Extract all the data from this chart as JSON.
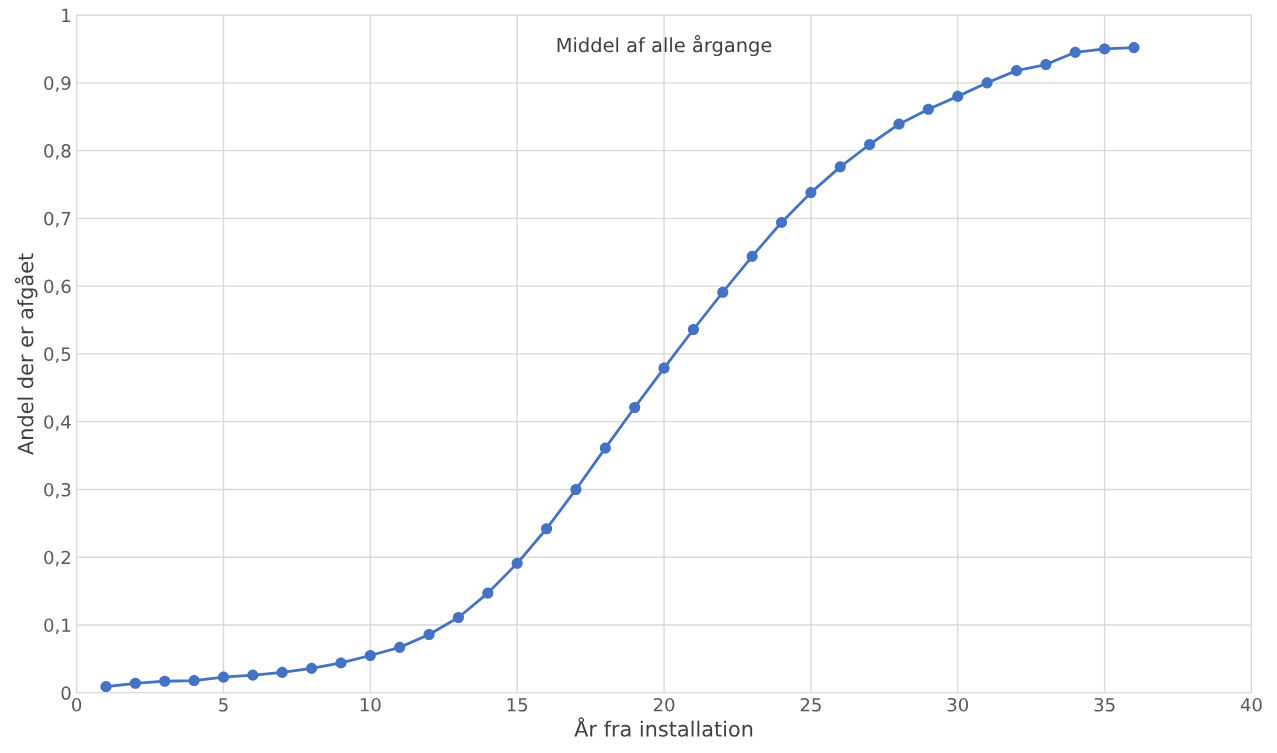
{
  "chart_data": {
    "type": "line",
    "title": "Middel af alle årgange",
    "xlabel": "År fra installation",
    "ylabel": "Andel der er afgået",
    "x": [
      1,
      2,
      3,
      4,
      5,
      6,
      7,
      8,
      9,
      10,
      11,
      12,
      13,
      14,
      15,
      16,
      17,
      18,
      19,
      20,
      21,
      22,
      23,
      24,
      25,
      26,
      27,
      28,
      29,
      30,
      31,
      32,
      33,
      34,
      35,
      36
    ],
    "series": [
      {
        "color": "#4472c4",
        "values": [
          0.009,
          0.014,
          0.017,
          0.018,
          0.023,
          0.026,
          0.03,
          0.036,
          0.044,
          0.055,
          0.067,
          0.086,
          0.111,
          0.147,
          0.191,
          0.242,
          0.3,
          0.361,
          0.421,
          0.479,
          0.536,
          0.591,
          0.644,
          0.694,
          0.738,
          0.776,
          0.809,
          0.839,
          0.861,
          0.88,
          0.9,
          0.918,
          0.927,
          0.945,
          0.95,
          0.952
        ]
      }
    ],
    "xlim": [
      0,
      40
    ],
    "xticks": [
      0,
      5,
      10,
      15,
      20,
      25,
      30,
      35,
      40
    ],
    "ylim": [
      0,
      1
    ],
    "yticks": [
      0,
      {
        "value": 0.1,
        "label": "0,1"
      },
      {
        "value": 0.2,
        "label": "0,2"
      },
      {
        "value": 0.3,
        "label": "0,3"
      },
      {
        "value": 0.4,
        "label": "0,4"
      },
      {
        "value": 0.5,
        "label": "0,5"
      },
      {
        "value": 0.6,
        "label": "0,6"
      },
      {
        "value": 0.7,
        "label": "0,7"
      },
      {
        "value": 0.8,
        "label": "0,8"
      },
      {
        "value": 0.9,
        "label": "0,9"
      },
      1
    ],
    "grid": true,
    "marker": "circle",
    "line_style": "solid",
    "legend": false
  }
}
